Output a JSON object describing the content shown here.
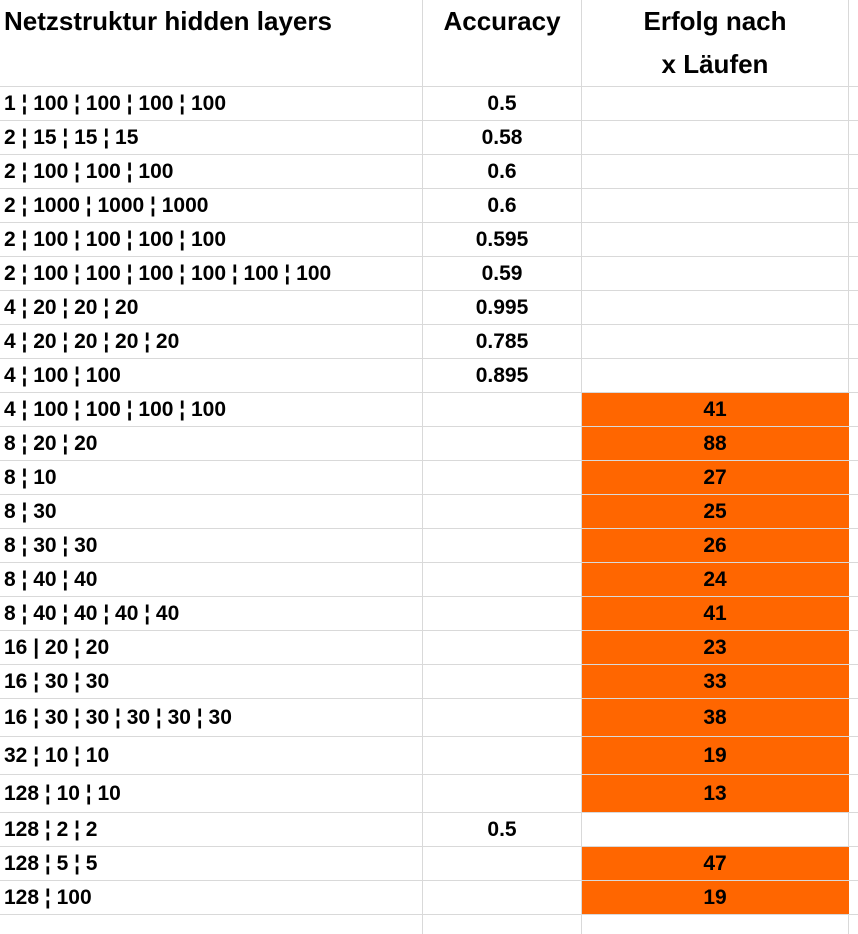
{
  "headers": {
    "structure": "Netzstruktur hidden layers",
    "accuracy": "Accuracy",
    "success_line1": "Erfolg nach",
    "success_line2": "x Läufen"
  },
  "highlight_color": "#ff6600",
  "rows": [
    {
      "structure": "1 ¦ 100 ¦ 100 ¦ 100 ¦ 100",
      "accuracy": "0.5",
      "success": ""
    },
    {
      "structure": "2 ¦ 15 ¦ 15 ¦ 15",
      "accuracy": "0.58",
      "success": ""
    },
    {
      "structure": "2 ¦ 100 ¦ 100 ¦ 100",
      "accuracy": "0.6",
      "success": ""
    },
    {
      "structure": "2 ¦ 1000 ¦ 1000 ¦ 1000",
      "accuracy": "0.6",
      "success": ""
    },
    {
      "structure": "2 ¦ 100 ¦ 100 ¦ 100 ¦ 100",
      "accuracy": "0.595",
      "success": ""
    },
    {
      "structure": "2 ¦ 100 ¦ 100 ¦ 100 ¦ 100 ¦ 100 ¦ 100",
      "accuracy": "0.59",
      "success": ""
    },
    {
      "structure": "4 ¦ 20 ¦ 20 ¦ 20",
      "accuracy": "0.995",
      "success": ""
    },
    {
      "structure": "4 ¦ 20 ¦ 20 ¦ 20 ¦ 20",
      "accuracy": "0.785",
      "success": ""
    },
    {
      "structure": "4 ¦ 100 ¦ 100",
      "accuracy": "0.895",
      "success": ""
    },
    {
      "structure": "4 ¦ 100 ¦ 100 ¦ 100 ¦ 100",
      "accuracy": "",
      "success": "41"
    },
    {
      "structure": "8 ¦ 20 ¦ 20",
      "accuracy": "",
      "success": "88"
    },
    {
      "structure": "8 ¦ 10",
      "accuracy": "",
      "success": "27"
    },
    {
      "structure": "8 ¦ 30",
      "accuracy": "",
      "success": "25"
    },
    {
      "structure": "8 ¦ 30 ¦ 30",
      "accuracy": "",
      "success": "26"
    },
    {
      "structure": "8 ¦ 40 ¦ 40",
      "accuracy": "",
      "success": "24"
    },
    {
      "structure": "8 ¦ 40 ¦ 40 ¦ 40 ¦ 40",
      "accuracy": "",
      "success": "41"
    },
    {
      "structure": "16 | 20 ¦ 20",
      "accuracy": "",
      "success": "23"
    },
    {
      "structure": "16 ¦ 30 ¦ 30",
      "accuracy": "",
      "success": "33"
    },
    {
      "structure": "16 ¦ 30 ¦ 30 ¦ 30 ¦ 30 ¦ 30",
      "accuracy": "",
      "success": "38"
    },
    {
      "structure": "32 ¦ 10 ¦ 10",
      "accuracy": "",
      "success": "19"
    },
    {
      "structure": "128 ¦ 10 ¦ 10",
      "accuracy": "",
      "success": "13"
    },
    {
      "structure": "128 ¦ 2 ¦ 2",
      "accuracy": "0.5",
      "success": ""
    },
    {
      "structure": "128 ¦ 5 ¦ 5",
      "accuracy": "",
      "success": "47"
    },
    {
      "structure": "128 ¦ 100",
      "accuracy": "",
      "success": "19"
    }
  ]
}
